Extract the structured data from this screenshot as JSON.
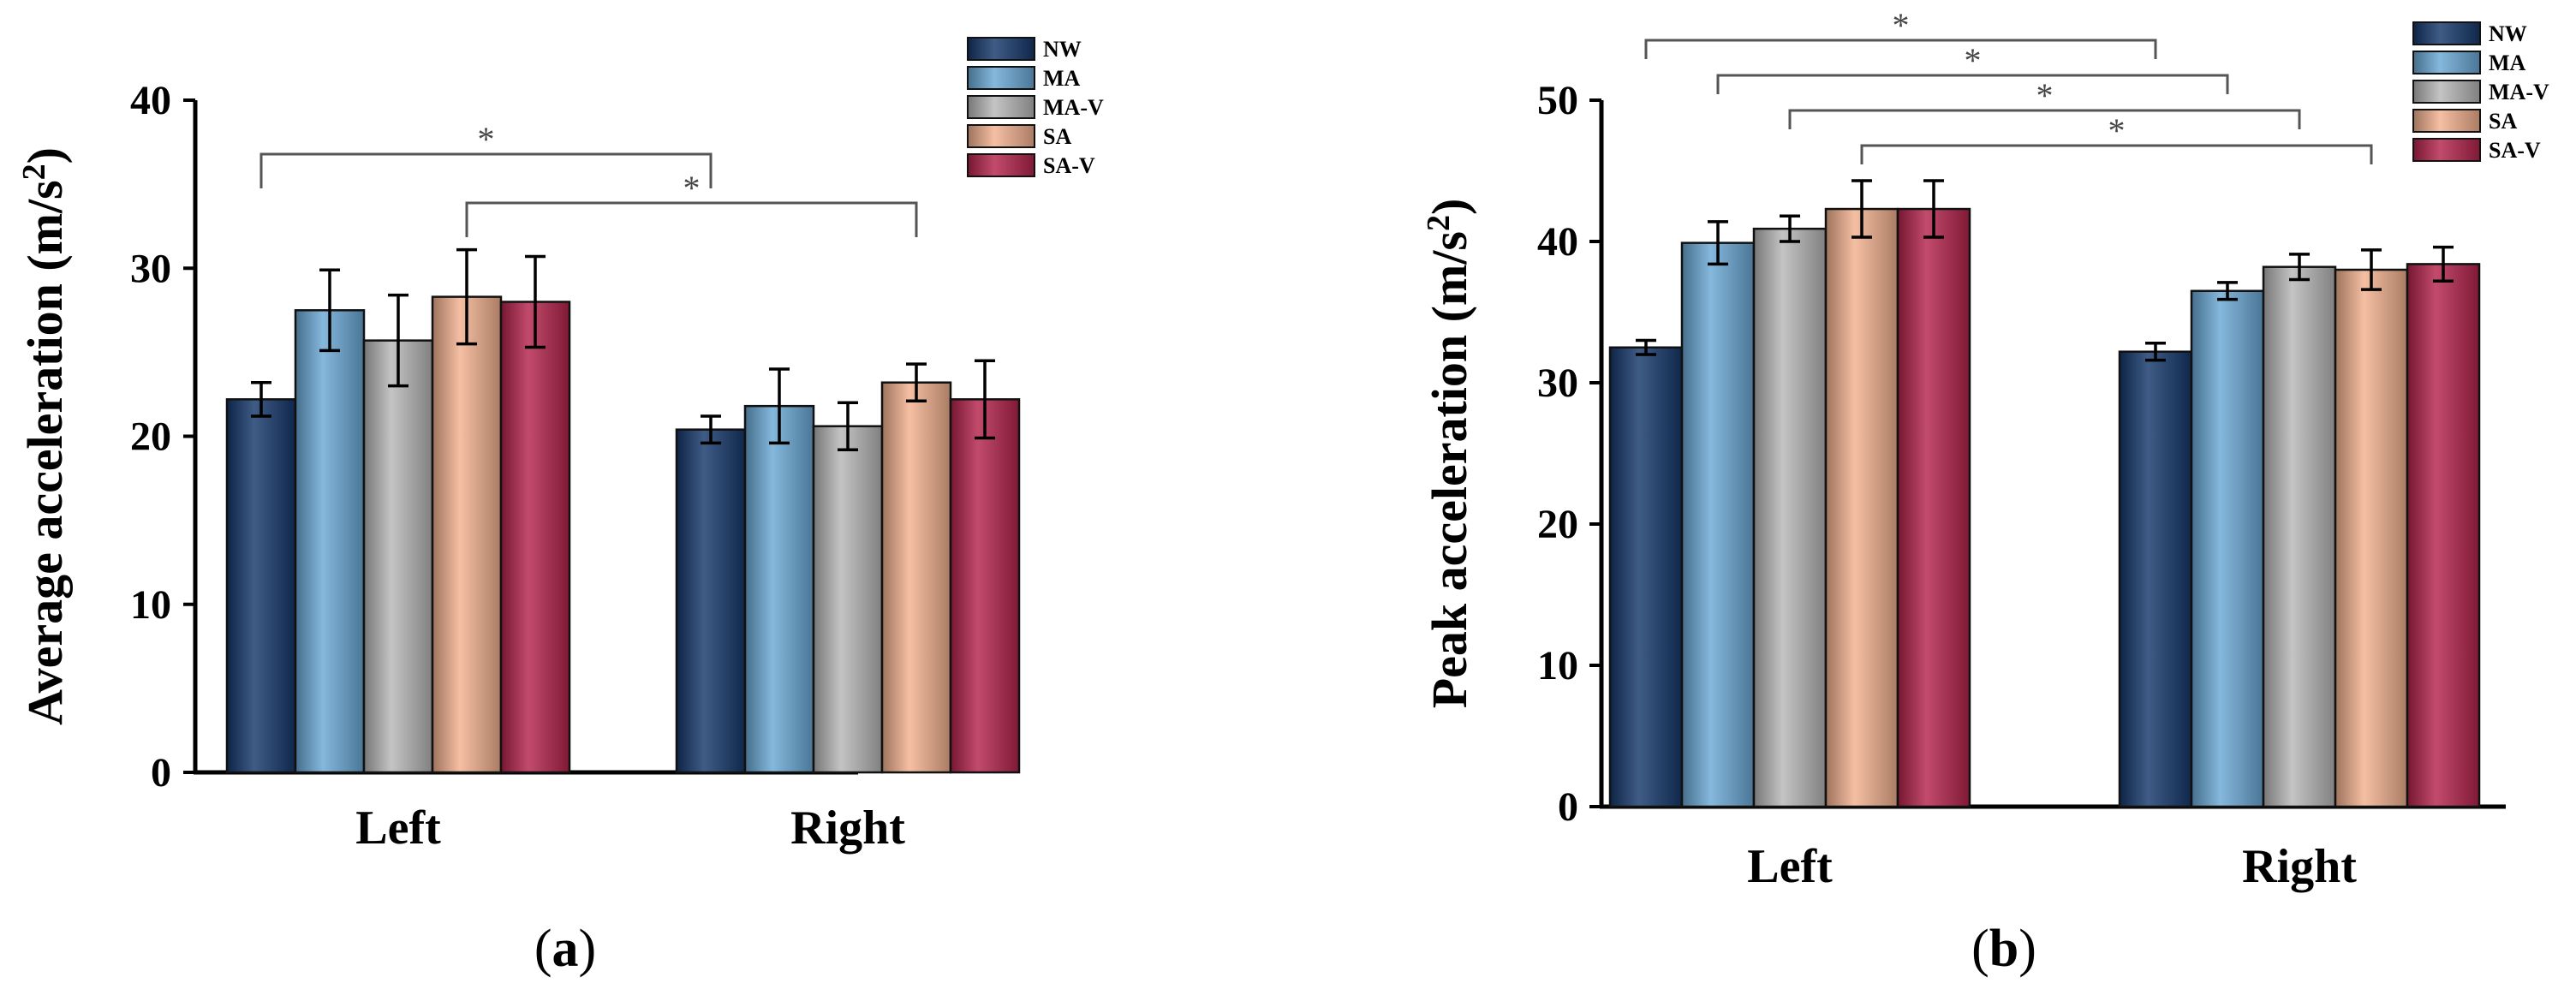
{
  "chart_data": [
    {
      "type": "bar",
      "panel": "a",
      "categories": [
        "Left",
        "Right"
      ],
      "series": [
        {
          "name": "NW",
          "color": "#15386b",
          "values": [
            22.2,
            20.4
          ],
          "errors": [
            1.0,
            0.8
          ]
        },
        {
          "name": "MA",
          "color": "#6aa9d6",
          "values": [
            27.5,
            21.8
          ],
          "errors": [
            2.4,
            2.2
          ]
        },
        {
          "name": "MA-V",
          "color": "#b7b7b7",
          "values": [
            25.7,
            20.6
          ],
          "errors": [
            2.7,
            1.4
          ]
        },
        {
          "name": "SA",
          "color": "#f3b18f",
          "values": [
            28.3,
            23.2
          ],
          "errors": [
            2.8,
            1.1
          ]
        },
        {
          "name": "SA-V",
          "color": "#b5244c",
          "values": [
            28.0,
            22.2
          ],
          "errors": [
            2.7,
            2.3
          ]
        }
      ],
      "ylabel": "Average acceleration (m/s²)",
      "ylabel_base": "Average acceleration (m/s",
      "ylabel_sup": "2",
      "ylabel_close": ")",
      "ylim": [
        0,
        40
      ],
      "yticks": [
        0,
        10,
        20,
        30,
        40
      ],
      "legend": "top-right",
      "significance": [
        {
          "from": {
            "category": "Left",
            "series": "NW"
          },
          "to": {
            "category": "Right",
            "series": "NW"
          },
          "label": "*"
        },
        {
          "from": {
            "category": "Left",
            "series": "SA"
          },
          "to": {
            "category": "Right",
            "series": "SA"
          },
          "label": "*"
        }
      ],
      "panel_label": {
        "open": "(",
        "letter": "a",
        "close": ")"
      }
    },
    {
      "type": "bar",
      "panel": "b",
      "categories": [
        "Left",
        "Right"
      ],
      "series": [
        {
          "name": "NW",
          "color": "#15386b",
          "values": [
            32.5,
            32.2
          ],
          "errors": [
            0.5,
            0.6
          ]
        },
        {
          "name": "MA",
          "color": "#6aa9d6",
          "values": [
            39.9,
            36.5
          ],
          "errors": [
            1.5,
            0.6
          ]
        },
        {
          "name": "MA-V",
          "color": "#b7b7b7",
          "values": [
            40.9,
            38.2
          ],
          "errors": [
            0.9,
            0.9
          ]
        },
        {
          "name": "SA",
          "color": "#f3b18f",
          "values": [
            42.3,
            38.0
          ],
          "errors": [
            2.0,
            1.4
          ]
        },
        {
          "name": "SA-V",
          "color": "#b5244c",
          "values": [
            42.3,
            38.4
          ],
          "errors": [
            2.0,
            1.2
          ]
        }
      ],
      "ylabel": "Peak acceleration (m/s²)",
      "ylabel_base": "Peak acceleration (m/s",
      "ylabel_sup": "2",
      "ylabel_close": ")",
      "ylim": [
        0,
        50
      ],
      "yticks": [
        0,
        10,
        20,
        30,
        40,
        50
      ],
      "legend": "top-right",
      "significance": [
        {
          "from": {
            "category": "Left",
            "series": "NW"
          },
          "to": {
            "category": "Right",
            "series": "NW"
          },
          "label": "*"
        },
        {
          "from": {
            "category": "Left",
            "series": "MA"
          },
          "to": {
            "category": "Right",
            "series": "MA"
          },
          "label": "*"
        },
        {
          "from": {
            "category": "Left",
            "series": "MA-V"
          },
          "to": {
            "category": "Right",
            "series": "MA-V"
          },
          "label": "*"
        },
        {
          "from": {
            "category": "Left",
            "series": "SA"
          },
          "to": {
            "category": "Right",
            "series": "SA"
          },
          "label": "*"
        }
      ],
      "panel_label": {
        "open": "(",
        "letter": "b",
        "close": ")"
      }
    }
  ]
}
